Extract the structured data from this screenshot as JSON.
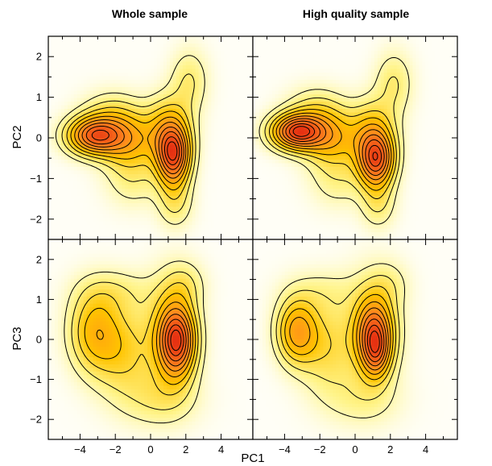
{
  "chart_data": [
    {
      "type": "heatmap",
      "title": "Whole sample",
      "xlabel": "",
      "ylabel": "PC2",
      "xlim": [
        -5.8,
        5.8
      ],
      "ylim": [
        -2.5,
        2.5
      ],
      "xticks": [],
      "yticks": [
        -2,
        -1,
        0,
        1,
        2
      ],
      "yticklabels": [
        "−2",
        "−1",
        "0",
        "1",
        "2"
      ],
      "peaks": [
        {
          "x": -3.2,
          "y": 0.05,
          "sx": 1.05,
          "sy": 0.32,
          "w": 0.95
        },
        {
          "x": 1.3,
          "y": -0.45,
          "sx": 0.65,
          "sy": 0.5,
          "w": 1.0
        },
        {
          "x": 1.0,
          "y": 0.2,
          "sx": 0.9,
          "sy": 0.55,
          "w": 0.45
        },
        {
          "x": -1.3,
          "y": -0.05,
          "sx": 1.1,
          "sy": 0.45,
          "w": 0.5
        },
        {
          "x": 2.2,
          "y": 1.4,
          "sx": 0.75,
          "sy": 0.55,
          "w": 0.22
        },
        {
          "x": 1.4,
          "y": -1.6,
          "sx": 0.7,
          "sy": 0.45,
          "w": 0.22
        },
        {
          "x": -2.2,
          "y": 0.6,
          "sx": 1.2,
          "sy": 0.4,
          "w": 0.22
        },
        {
          "x": -1.0,
          "y": -1.0,
          "sx": 1.1,
          "sy": 0.5,
          "w": 0.18
        }
      ]
    },
    {
      "type": "heatmap",
      "title": "High quality sample",
      "xlabel": "",
      "ylabel": "",
      "xlim": [
        -5.8,
        5.8
      ],
      "ylim": [
        -2.5,
        2.5
      ],
      "xticks": [],
      "yticks": [],
      "peaks": [
        {
          "x": -3.3,
          "y": 0.15,
          "sx": 1.0,
          "sy": 0.3,
          "w": 1.0
        },
        {
          "x": 1.2,
          "y": -0.55,
          "sx": 0.7,
          "sy": 0.45,
          "w": 0.85
        },
        {
          "x": 1.0,
          "y": 0.1,
          "sx": 0.9,
          "sy": 0.55,
          "w": 0.4
        },
        {
          "x": -1.4,
          "y": 0.0,
          "sx": 1.1,
          "sy": 0.45,
          "w": 0.45
        },
        {
          "x": 2.2,
          "y": 1.35,
          "sx": 0.75,
          "sy": 0.55,
          "w": 0.2
        },
        {
          "x": 1.3,
          "y": -1.6,
          "sx": 0.7,
          "sy": 0.45,
          "w": 0.2
        },
        {
          "x": -2.2,
          "y": 0.7,
          "sx": 1.2,
          "sy": 0.4,
          "w": 0.2
        },
        {
          "x": -1.0,
          "y": -1.0,
          "sx": 1.1,
          "sy": 0.5,
          "w": 0.16
        }
      ]
    },
    {
      "type": "heatmap",
      "title": "",
      "xlabel": "PC1",
      "ylabel": "PC3",
      "xlim": [
        -5.8,
        5.8
      ],
      "ylim": [
        -2.5,
        2.5
      ],
      "xticks": [
        -4,
        -2,
        0,
        2,
        4
      ],
      "xticklabels": [
        "−4",
        "−2",
        "0",
        "2",
        "4"
      ],
      "yticks": [
        -2,
        -1,
        0,
        1,
        2
      ],
      "yticklabels": [
        "−2",
        "−1",
        "0",
        "1",
        "2"
      ],
      "peaks": [
        {
          "x": -3.2,
          "y": 0.2,
          "sx": 1.0,
          "sy": 0.7,
          "w": 0.5
        },
        {
          "x": 1.5,
          "y": -0.05,
          "sx": 0.7,
          "sy": 0.6,
          "w": 1.0
        },
        {
          "x": 1.2,
          "y": 0.2,
          "sx": 1.0,
          "sy": 0.95,
          "w": 0.4
        },
        {
          "x": -1.5,
          "y": -0.3,
          "sx": 1.2,
          "sy": 0.8,
          "w": 0.35
        },
        {
          "x": 0.5,
          "y": -1.5,
          "sx": 1.5,
          "sy": 0.5,
          "w": 0.2
        },
        {
          "x": -2.0,
          "y": 1.2,
          "sx": 1.5,
          "sy": 0.4,
          "w": 0.16
        },
        {
          "x": 2.0,
          "y": 1.4,
          "sx": 0.8,
          "sy": 0.4,
          "w": 0.16
        }
      ]
    },
    {
      "type": "heatmap",
      "title": "",
      "xlabel": "PC1",
      "ylabel": "",
      "xlim": [
        -5.8,
        5.8
      ],
      "ylim": [
        -2.5,
        2.5
      ],
      "xticks": [
        -4,
        -2,
        0,
        2,
        4
      ],
      "xticklabels": [
        "−4",
        "−2",
        "0",
        "2",
        "4"
      ],
      "yticks": [],
      "peaks": [
        {
          "x": -3.3,
          "y": 0.2,
          "sx": 0.8,
          "sy": 0.55,
          "w": 0.75
        },
        {
          "x": 1.1,
          "y": 0.1,
          "sx": 0.7,
          "sy": 0.6,
          "w": 1.0
        },
        {
          "x": 1.2,
          "y": -0.4,
          "sx": 0.5,
          "sy": 0.4,
          "w": 0.4
        },
        {
          "x": 1.0,
          "y": 0.3,
          "sx": 1.1,
          "sy": 0.95,
          "w": 0.35
        },
        {
          "x": -1.6,
          "y": -0.2,
          "sx": 1.1,
          "sy": 0.8,
          "w": 0.35
        },
        {
          "x": 0.4,
          "y": -1.5,
          "sx": 1.5,
          "sy": 0.5,
          "w": 0.18
        },
        {
          "x": -2.0,
          "y": 1.2,
          "sx": 1.5,
          "sy": 0.4,
          "w": 0.14
        },
        {
          "x": 2.0,
          "y": 1.4,
          "sx": 0.8,
          "sy": 0.4,
          "w": 0.14
        }
      ]
    }
  ],
  "figure": {
    "column_titles": [
      "Whole sample",
      "High quality sample"
    ],
    "row_ylabels": [
      "PC2",
      "PC3"
    ],
    "shared_xlabel": "PC1",
    "contour_levels": [
      0.09,
      0.17,
      0.26,
      0.35,
      0.45,
      0.55,
      0.65,
      0.75,
      0.85,
      0.93
    ],
    "colors": {
      "background": "#fffef6",
      "low": "#fff48a",
      "mid": "#ffc400",
      "high": "#ff8a1e",
      "peak": "#e63012",
      "contour": "#000000"
    }
  }
}
